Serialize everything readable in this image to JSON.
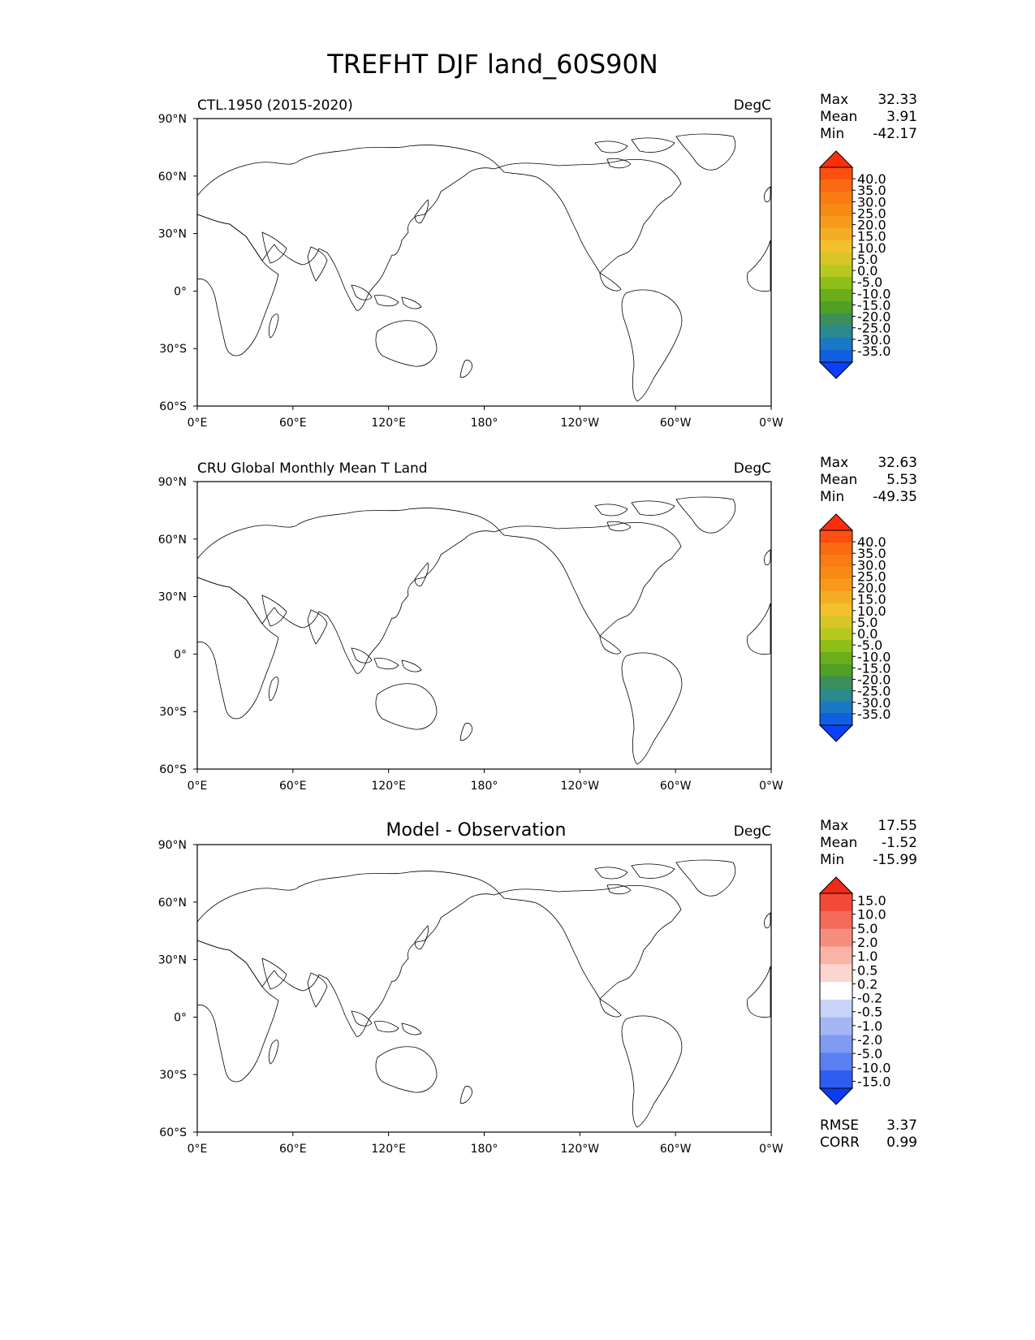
{
  "figure": {
    "title": "TREFHT DJF land_60S90N"
  },
  "axes": {
    "lon_ticks": [
      "0°E",
      "60°E",
      "120°E",
      "180°",
      "120°W",
      "60°W",
      "0°W"
    ],
    "lat_ticks": [
      "90°N",
      "60°N",
      "30°N",
      "0°",
      "30°S",
      "60°S"
    ]
  },
  "colors": {
    "abs_levels": [
      "#0b3ff9",
      "#0f5fe0",
      "#1b78c4",
      "#2a8a8c",
      "#3a8f5a",
      "#4fa025",
      "#6aae1b",
      "#8ebf18",
      "#b7c91f",
      "#d8c629",
      "#f2c12b",
      "#f6ad26",
      "#f79a1c",
      "#f78a15",
      "#f87b14",
      "#fa6a12",
      "#fc4f10",
      "#fd2e0a"
    ],
    "diff_levels": [
      "#0a3cf5",
      "#2f5cf0",
      "#5a7ff0",
      "#7f9bf2",
      "#a5b6f5",
      "#c9d3f8",
      "#ffffff",
      "#fbd6d0",
      "#f9b3a7",
      "#f78d7e",
      "#f46b5b",
      "#f1493a",
      "#ef2a18"
    ],
    "continent_outline": "#000000"
  },
  "panels": [
    {
      "id": "model",
      "title": "CTL.1950 (2015-2020)",
      "units": "DegC",
      "stats": [
        {
          "label": "Max",
          "value": "32.33"
        },
        {
          "label": "Mean",
          "value": "3.91"
        },
        {
          "label": "Min",
          "value": "-42.17"
        }
      ],
      "colorbar_labels": [
        "40.0",
        "35.0",
        "30.0",
        "25.0",
        "20.0",
        "15.0",
        "10.0",
        "5.0",
        "0.0",
        "-5.0",
        "-10.0",
        "-15.0",
        "-20.0",
        "-25.0",
        "-30.0",
        "-35.0"
      ],
      "palette": "abs"
    },
    {
      "id": "obs",
      "title": "CRU Global Monthly Mean T Land",
      "units": "DegC",
      "stats": [
        {
          "label": "Max",
          "value": "32.63"
        },
        {
          "label": "Mean",
          "value": "5.53"
        },
        {
          "label": "Min",
          "value": "-49.35"
        }
      ],
      "colorbar_labels": [
        "40.0",
        "35.0",
        "30.0",
        "25.0",
        "20.0",
        "15.0",
        "10.0",
        "5.0",
        "0.0",
        "-5.0",
        "-10.0",
        "-15.0",
        "-20.0",
        "-25.0",
        "-30.0",
        "-35.0"
      ],
      "palette": "abs"
    },
    {
      "id": "diff",
      "title": "Model - Observation",
      "units": "DegC",
      "stats": [
        {
          "label": "Max",
          "value": "17.55"
        },
        {
          "label": "Mean",
          "value": "-1.52"
        },
        {
          "label": "Min",
          "value": "-15.99"
        }
      ],
      "colorbar_labels": [
        "15.0",
        "10.0",
        "5.0",
        "2.0",
        "1.0",
        "0.5",
        "0.2",
        "-0.2",
        "-0.5",
        "-1.0",
        "-2.0",
        "-5.0",
        "-10.0",
        "-15.0"
      ],
      "palette": "diff",
      "extra_stats": [
        {
          "label": "RMSE",
          "value": "3.37"
        },
        {
          "label": "CORR",
          "value": "0.99"
        }
      ]
    }
  ]
}
